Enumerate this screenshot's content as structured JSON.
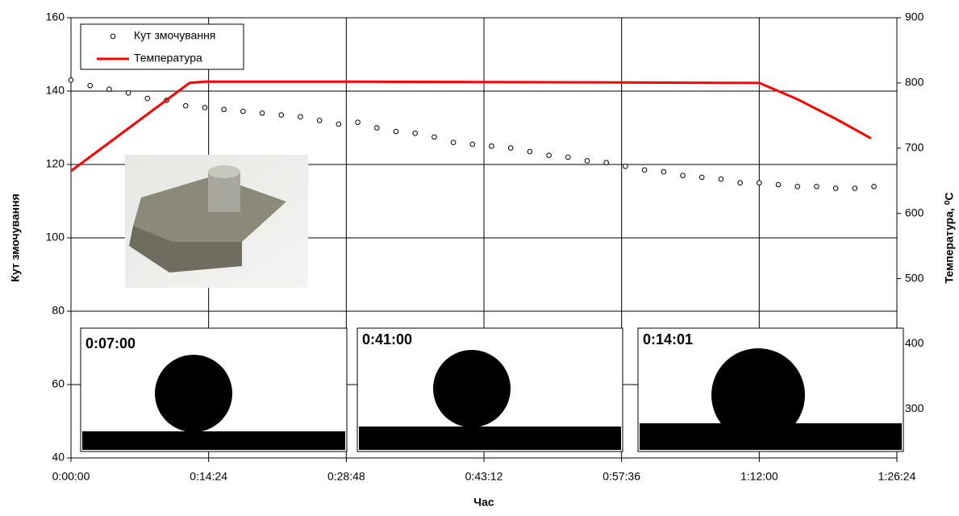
{
  "chart_data": {
    "type": "scatter-line",
    "xlabel": "Час",
    "ylabel": "Кут змочування",
    "y2label": "Температура, ⁰C",
    "xlim": [
      0,
      86.4
    ],
    "xticks": [
      {
        "value": 0,
        "label": "0:00:00"
      },
      {
        "value": 14.4,
        "label": "0:14:24"
      },
      {
        "value": 28.8,
        "label": "0:28:48"
      },
      {
        "value": 43.2,
        "label": "0:43:12"
      },
      {
        "value": 57.6,
        "label": "0:57:36"
      },
      {
        "value": 72,
        "label": "1:12:00"
      },
      {
        "value": 86.4,
        "label": "1:26:24"
      }
    ],
    "ylim": [
      40,
      160
    ],
    "yticks": [
      40,
      60,
      80,
      100,
      120,
      140,
      160
    ],
    "y2lim": [
      225,
      900
    ],
    "y2ticks": [
      300,
      400,
      500,
      600,
      700,
      800,
      900
    ],
    "grid": true,
    "legend": "upper left",
    "annotations": [
      "0:07:00",
      "0:41:00",
      "0:14:01"
    ],
    "series": [
      {
        "name": "Кут змочування",
        "color": "#000000",
        "marker": "circle",
        "x": [
          0,
          2,
          4,
          6,
          8,
          10,
          12,
          14,
          16,
          18,
          20,
          22,
          24,
          26,
          28,
          30,
          32,
          34,
          36,
          38,
          40,
          42,
          44,
          46,
          48,
          50,
          52,
          54,
          56,
          58,
          60,
          62,
          64,
          66,
          68,
          70,
          72,
          74,
          76,
          78,
          80,
          82,
          84
        ],
        "values": [
          143,
          141.5,
          140.5,
          139.5,
          138,
          137.5,
          136,
          135.5,
          135,
          134.5,
          134,
          133.5,
          133,
          132,
          131,
          131.5,
          130,
          129,
          128.5,
          127.5,
          126,
          125.5,
          125,
          124.5,
          123.5,
          122.5,
          122,
          121,
          120.5,
          119.5,
          118.5,
          118,
          117,
          116.5,
          116,
          115,
          115,
          114.5,
          114,
          114,
          113.5,
          113.5,
          114
        ]
      },
      {
        "name": "Температура",
        "color": "#ff0000",
        "axis": "y2",
        "x": [
          0,
          12.4,
          14,
          30,
          72,
          76,
          80,
          83.7
        ],
        "values": [
          665,
          800,
          802,
          802,
          800,
          775,
          745,
          715
        ]
      }
    ]
  }
}
